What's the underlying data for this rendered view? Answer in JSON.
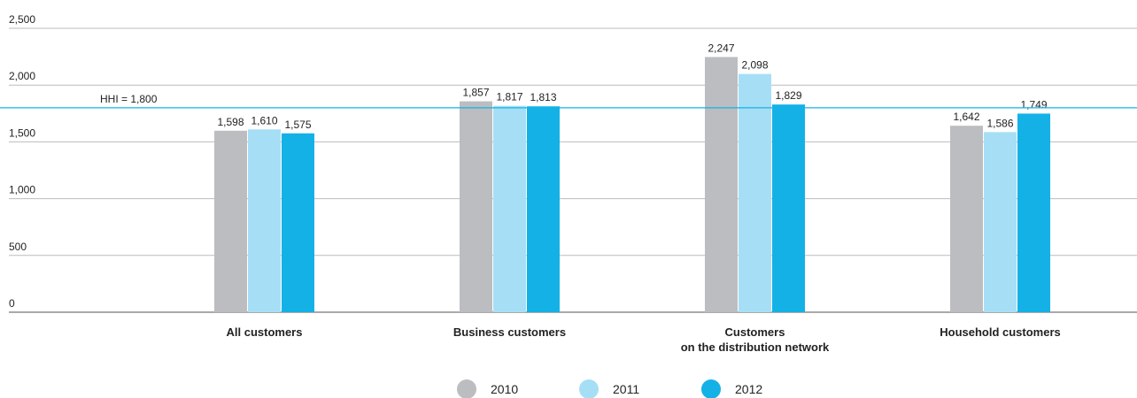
{
  "chart_data": {
    "type": "bar",
    "categories": [
      "All customers",
      "Business customers",
      "Customers\non the distribution network",
      "Household customers"
    ],
    "series": [
      {
        "name": "2010",
        "color": "#bcbdc0",
        "values": [
          1598,
          1857,
          2247,
          1642
        ],
        "value_labels": [
          "1,598",
          "1,857",
          "2,247",
          "1,642"
        ]
      },
      {
        "name": "2011",
        "color": "#a6dff5",
        "values": [
          1610,
          1817,
          2098,
          1586
        ],
        "value_labels": [
          "1,610",
          "1,817",
          "2,098",
          "1,586"
        ]
      },
      {
        "name": "2012",
        "color": "#14b1e7",
        "values": [
          1575,
          1813,
          1829,
          1749
        ],
        "value_labels": [
          "1,575",
          "1,813",
          "1,829",
          "1,749"
        ]
      }
    ],
    "ylim": [
      0,
      2500
    ],
    "yticks": [
      0,
      500,
      {
        "value": 1000,
        "label": "1,000"
      },
      {
        "value": 1500,
        "label": "1,500"
      },
      {
        "value": 2000,
        "label": "2,000"
      },
      {
        "value": 2500,
        "label": "2,500"
      }
    ],
    "grid": true,
    "reference_line": {
      "value": 1800,
      "label": "HHI = 1,800",
      "color": "#14b1e7"
    },
    "legend": "bottom"
  }
}
